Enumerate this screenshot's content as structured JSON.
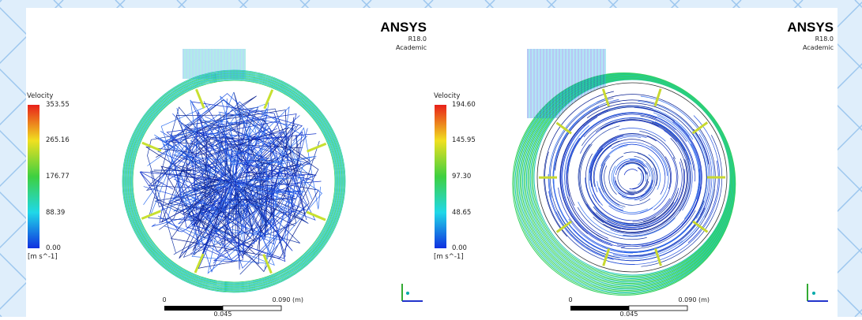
{
  "panels": [
    {
      "logo": {
        "brand": "ANSYS",
        "version": "R18.0",
        "edition": "Academic"
      },
      "legend": {
        "title": "Velocity",
        "ticks": [
          "353.55",
          "265.16",
          "176.77",
          "88.39",
          "0.00"
        ],
        "unit": "[m s^-1]"
      },
      "scale_bar": {
        "start": "0",
        "end": "0.090",
        "unit": "(m)",
        "mid": "0.045"
      }
    },
    {
      "logo": {
        "brand": "ANSYS",
        "version": "R18.0",
        "edition": "Academic"
      },
      "legend": {
        "title": "Velocity",
        "ticks": [
          "194.60",
          "145.95",
          "97.30",
          "48.65",
          "0.00"
        ],
        "unit": "[m s^-1]"
      },
      "scale_bar": {
        "start": "0",
        "end": "0.090",
        "unit": "(m)",
        "mid": "0.045"
      }
    }
  ]
}
